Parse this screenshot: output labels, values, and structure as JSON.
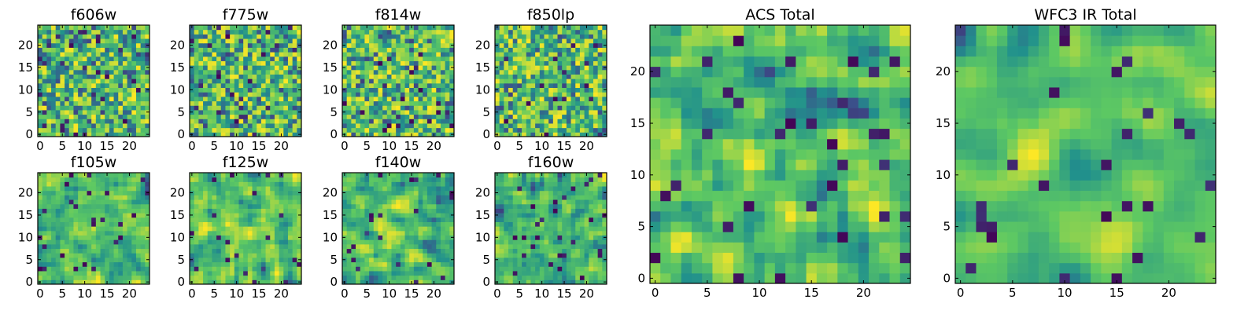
{
  "chart_data": [
    {
      "type": "heatmap",
      "title": "f606w",
      "grid": 25,
      "seed": 11,
      "smooth": 0,
      "xticks": [
        0,
        5,
        10,
        15,
        20
      ],
      "yticks": [
        0,
        5,
        10,
        15,
        20
      ],
      "xlabel": "",
      "ylabel": ""
    },
    {
      "type": "heatmap",
      "title": "f775w",
      "grid": 25,
      "seed": 23,
      "smooth": 0,
      "xticks": [
        0,
        5,
        10,
        15,
        20
      ],
      "yticks": [
        0,
        5,
        10,
        15,
        20
      ],
      "xlabel": "",
      "ylabel": ""
    },
    {
      "type": "heatmap",
      "title": "f814w",
      "grid": 25,
      "seed": 37,
      "smooth": 0,
      "xticks": [
        0,
        5,
        10,
        15,
        20
      ],
      "yticks": [
        0,
        5,
        10,
        15,
        20
      ],
      "xlabel": "",
      "ylabel": ""
    },
    {
      "type": "heatmap",
      "title": "f850lp",
      "grid": 25,
      "seed": 41,
      "smooth": 0,
      "xticks": [
        0,
        5,
        10,
        15,
        20
      ],
      "yticks": [
        0,
        5,
        10,
        15,
        20
      ],
      "xlabel": "",
      "ylabel": ""
    },
    {
      "type": "heatmap",
      "title": "f105w",
      "grid": 25,
      "seed": 53,
      "smooth": 1,
      "xticks": [
        0,
        5,
        10,
        15,
        20
      ],
      "yticks": [
        0,
        5,
        10,
        15,
        20
      ],
      "xlabel": "",
      "ylabel": ""
    },
    {
      "type": "heatmap",
      "title": "f125w",
      "grid": 25,
      "seed": 67,
      "smooth": 1,
      "xticks": [
        0,
        5,
        10,
        15,
        20
      ],
      "yticks": [
        0,
        5,
        10,
        15,
        20
      ],
      "xlabel": "",
      "ylabel": ""
    },
    {
      "type": "heatmap",
      "title": "f140w",
      "grid": 25,
      "seed": 71,
      "smooth": 1,
      "xticks": [
        0,
        5,
        10,
        15,
        20
      ],
      "yticks": [
        0,
        5,
        10,
        15,
        20
      ],
      "xlabel": "",
      "ylabel": ""
    },
    {
      "type": "heatmap",
      "title": "f160w",
      "grid": 25,
      "seed": 89,
      "smooth": 1,
      "xticks": [
        0,
        5,
        10,
        15,
        20
      ],
      "yticks": [
        0,
        5,
        10,
        15,
        20
      ],
      "xlabel": "",
      "ylabel": ""
    },
    {
      "type": "heatmap",
      "title": "ACS Total",
      "grid": 25,
      "seed": 97,
      "smooth": 1,
      "xticks": [
        0,
        5,
        10,
        15,
        20
      ],
      "yticks": [
        0,
        5,
        10,
        15,
        20
      ],
      "xlabel": "",
      "ylabel": ""
    },
    {
      "type": "heatmap",
      "title": "WFC3 IR Total",
      "grid": 25,
      "seed": 103,
      "smooth": 2,
      "xticks": [
        0,
        5,
        10,
        15,
        20
      ],
      "yticks": [
        0,
        5,
        10,
        15,
        20
      ],
      "xlabel": "",
      "ylabel": ""
    }
  ],
  "colormap": [
    "#440154",
    "#3b528b",
    "#21918c",
    "#5ec962",
    "#fde725"
  ]
}
